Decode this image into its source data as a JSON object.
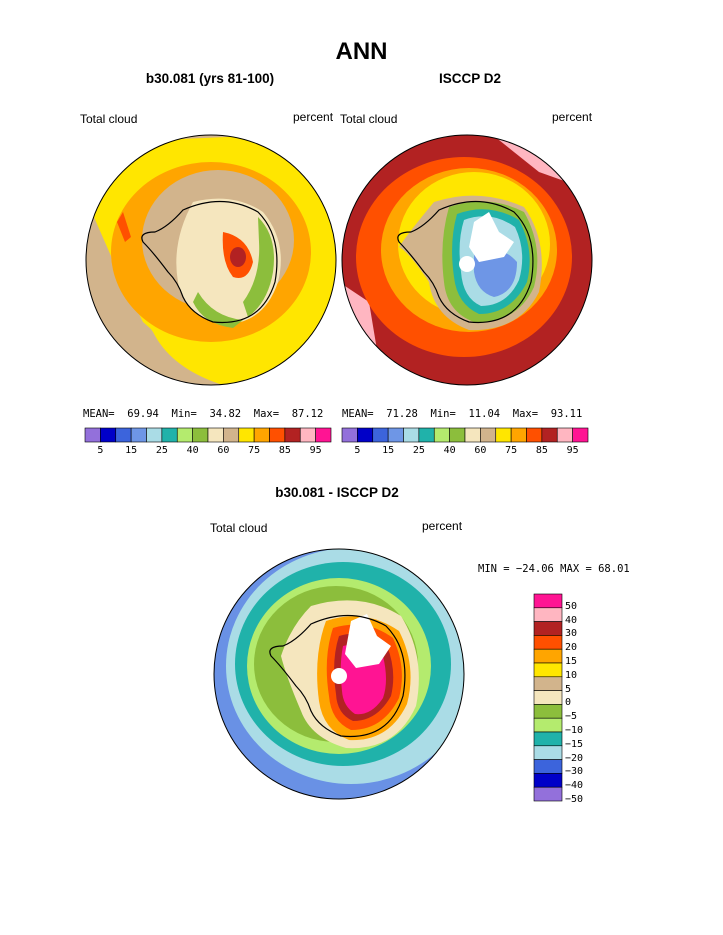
{
  "title": "ANN",
  "panels": [
    {
      "title": "b30.081 (yrs 81-100)",
      "left_label": "Total cloud",
      "right_label": "percent",
      "stats": {
        "mean_label": "MEAN=",
        "mean": "69.94",
        "min_label": "Min=",
        "min": "34.82",
        "max_label": "Max=",
        "max": "87.12"
      }
    },
    {
      "title": "ISCCP D2",
      "left_label": "Total cloud",
      "right_label": "percent",
      "stats": {
        "mean_label": "MEAN=",
        "mean": "71.28",
        "min_label": "Min=",
        "min": "11.04",
        "max_label": "Max=",
        "max": "93.11"
      }
    },
    {
      "title": "b30.081 - ISCCP D2",
      "left_label": "Total cloud",
      "right_label": "percent",
      "minmax": "MIN = −24.06 MAX =  68.01"
    }
  ],
  "chart_data": [
    {
      "type": "heatmap",
      "title": "b30.081 (yrs 81-100)",
      "variable": "Total cloud",
      "units": "percent",
      "projection": "south polar stereographic",
      "stats": {
        "mean": 69.94,
        "min": 34.82,
        "max": 87.12
      },
      "levels": [
        5,
        10,
        15,
        20,
        25,
        30,
        40,
        50,
        60,
        70,
        75,
        80,
        85,
        90,
        95
      ],
      "level_tick_labels": [
        "5",
        "15",
        "25",
        "40",
        "60",
        "75",
        "85",
        "95"
      ],
      "colors": [
        "#9370db",
        "#0000c8",
        "#3c64dc",
        "#6e96e6",
        "#aadce6",
        "#20b2aa",
        "#b4eb6e",
        "#8cbe3c",
        "#f5e6be",
        "#d2b48c",
        "#ffe600",
        "#ffa500",
        "#ff5000",
        "#b22222",
        "#ffb6c1",
        "#ff1493"
      ],
      "legend": "bottom"
    },
    {
      "type": "heatmap",
      "title": "ISCCP D2",
      "variable": "Total cloud",
      "units": "percent",
      "projection": "south polar stereographic",
      "stats": {
        "mean": 71.28,
        "min": 11.04,
        "max": 93.11
      },
      "levels": [
        5,
        10,
        15,
        20,
        25,
        30,
        40,
        50,
        60,
        70,
        75,
        80,
        85,
        90,
        95
      ],
      "level_tick_labels": [
        "5",
        "15",
        "25",
        "40",
        "60",
        "75",
        "85",
        "95"
      ],
      "colors": [
        "#9370db",
        "#0000c8",
        "#3c64dc",
        "#6e96e6",
        "#aadce6",
        "#20b2aa",
        "#b4eb6e",
        "#8cbe3c",
        "#f5e6be",
        "#d2b48c",
        "#ffe600",
        "#ffa500",
        "#ff5000",
        "#b22222",
        "#ffb6c1",
        "#ff1493"
      ],
      "legend": "bottom"
    },
    {
      "type": "heatmap",
      "title": "b30.081 - ISCCP D2",
      "variable": "Total cloud",
      "units": "percent",
      "projection": "south polar stereographic",
      "stats": {
        "min": -24.06,
        "max": 68.01
      },
      "levels": [
        -50,
        -40,
        -30,
        -20,
        -15,
        -10,
        -5,
        0,
        5,
        10,
        15,
        20,
        30,
        40,
        50
      ],
      "level_tick_labels": [
        "50",
        "40",
        "30",
        "20",
        "15",
        "10",
        "5",
        "0",
        "−5",
        "−10",
        "−15",
        "−20",
        "−30",
        "−40",
        "−50"
      ],
      "colors": [
        "#ff1493",
        "#ffb6c1",
        "#b22222",
        "#ff5000",
        "#ffa500",
        "#ffe600",
        "#d2b48c",
        "#f5e6be",
        "#8cbe3c",
        "#b4eb6e",
        "#20b2aa",
        "#aadce6",
        "#3c64dc",
        "#0000c8",
        "#9370db"
      ],
      "legend": "right"
    }
  ]
}
